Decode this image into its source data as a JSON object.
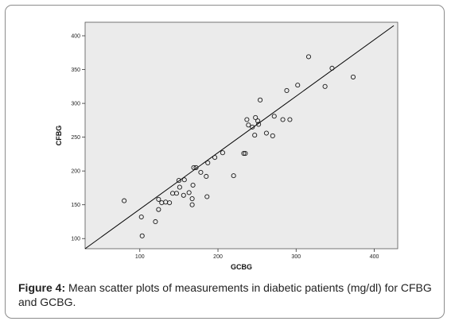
{
  "chart_data": {
    "type": "scatter",
    "title": "",
    "xlabel": "GCBG",
    "ylabel": "CFBG",
    "xlim": [
      30,
      430
    ],
    "ylim": [
      85,
      420
    ],
    "xticks": [
      100,
      200,
      300,
      400
    ],
    "yticks": [
      100,
      150,
      200,
      250,
      300,
      350,
      400
    ],
    "grid": false,
    "reference_line": {
      "from": [
        30,
        85
      ],
      "to": [
        425,
        415
      ]
    },
    "points": [
      {
        "x": 80,
        "y": 156
      },
      {
        "x": 102,
        "y": 132
      },
      {
        "x": 103,
        "y": 104
      },
      {
        "x": 120,
        "y": 125
      },
      {
        "x": 124,
        "y": 143
      },
      {
        "x": 124,
        "y": 158
      },
      {
        "x": 128,
        "y": 153
      },
      {
        "x": 133,
        "y": 154
      },
      {
        "x": 138,
        "y": 153
      },
      {
        "x": 142,
        "y": 167
      },
      {
        "x": 147,
        "y": 167
      },
      {
        "x": 150,
        "y": 186
      },
      {
        "x": 151,
        "y": 176
      },
      {
        "x": 156,
        "y": 164
      },
      {
        "x": 157,
        "y": 187
      },
      {
        "x": 163,
        "y": 168
      },
      {
        "x": 167,
        "y": 159
      },
      {
        "x": 167,
        "y": 150
      },
      {
        "x": 168,
        "y": 179
      },
      {
        "x": 169,
        "y": 205
      },
      {
        "x": 172,
        "y": 205
      },
      {
        "x": 178,
        "y": 198
      },
      {
        "x": 185,
        "y": 192
      },
      {
        "x": 186,
        "y": 162
      },
      {
        "x": 187,
        "y": 212
      },
      {
        "x": 196,
        "y": 220
      },
      {
        "x": 206,
        "y": 227
      },
      {
        "x": 220,
        "y": 193
      },
      {
        "x": 233,
        "y": 226
      },
      {
        "x": 235,
        "y": 226
      },
      {
        "x": 237,
        "y": 276
      },
      {
        "x": 239,
        "y": 268
      },
      {
        "x": 244,
        "y": 265
      },
      {
        "x": 247,
        "y": 253
      },
      {
        "x": 248,
        "y": 279
      },
      {
        "x": 251,
        "y": 274
      },
      {
        "x": 252,
        "y": 269
      },
      {
        "x": 254,
        "y": 305
      },
      {
        "x": 262,
        "y": 256
      },
      {
        "x": 270,
        "y": 252
      },
      {
        "x": 272,
        "y": 281
      },
      {
        "x": 283,
        "y": 276
      },
      {
        "x": 288,
        "y": 319
      },
      {
        "x": 292,
        "y": 276
      },
      {
        "x": 302,
        "y": 327
      },
      {
        "x": 316,
        "y": 369
      },
      {
        "x": 337,
        "y": 325
      },
      {
        "x": 346,
        "y": 352
      },
      {
        "x": 373,
        "y": 339
      }
    ]
  },
  "caption": {
    "label": "Figure 4:",
    "text": " Mean scatter plots of measurements in diabetic patients (mg/dl) for CFBG and GCBG."
  },
  "colors": {
    "plot_background": "#ebebeb",
    "marker_stroke": "#1a1a1a",
    "reference_line": "#000000",
    "frame_border": "#8c8c8c"
  }
}
